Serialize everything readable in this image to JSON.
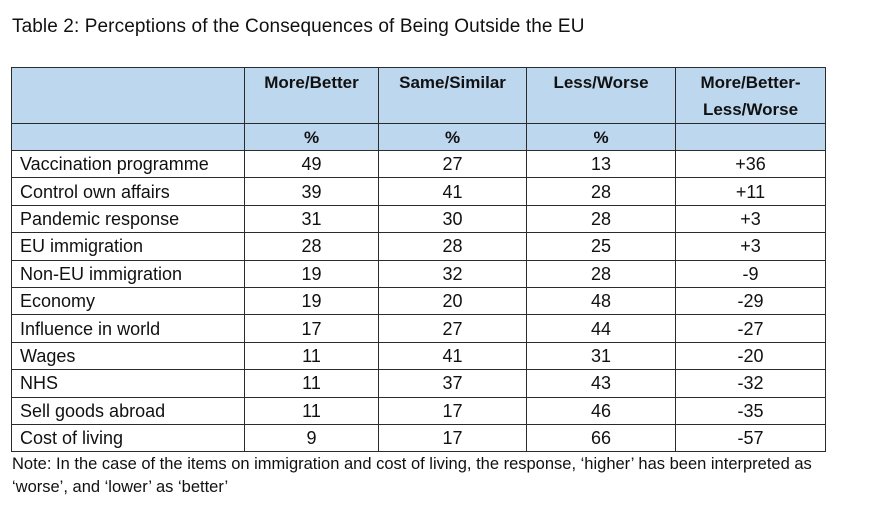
{
  "title": "Table 2: Perceptions of the Consequences of Being Outside the EU",
  "columns": [
    "More/Better",
    "Same/Similar",
    "Less/Worse",
    "More/Better-Less/Worse"
  ],
  "units": [
    "%",
    "%",
    "%",
    ""
  ],
  "rows": [
    {
      "label": "Vaccination programme",
      "values": [
        "49",
        "27",
        "13",
        "+36"
      ]
    },
    {
      "label": "Control own affairs",
      "values": [
        "39",
        "41",
        "28",
        "+11"
      ]
    },
    {
      "label": "Pandemic response",
      "values": [
        "31",
        "30",
        "28",
        "+3"
      ]
    },
    {
      "label": "EU immigration",
      "values": [
        "28",
        "28",
        "25",
        "+3"
      ]
    },
    {
      "label": "Non-EU immigration",
      "values": [
        "19",
        "32",
        "28",
        "-9"
      ]
    },
    {
      "label": "Economy",
      "values": [
        "19",
        "20",
        "48",
        "-29"
      ]
    },
    {
      "label": "Influence in world",
      "values": [
        "17",
        "27",
        "44",
        "-27"
      ]
    },
    {
      "label": "Wages",
      "values": [
        "11",
        "41",
        "31",
        "-20"
      ]
    },
    {
      "label": "NHS",
      "values": [
        "11",
        "37",
        "43",
        "-32"
      ]
    },
    {
      "label": "Sell goods abroad",
      "values": [
        "11",
        "17",
        "46",
        "-35"
      ]
    },
    {
      "label": "Cost of living",
      "values": [
        "9",
        "17",
        "66",
        "-57"
      ]
    }
  ],
  "note": "Note: In the case of the items on immigration and cost of living, the response, ‘higher’ has been interpreted as ‘worse’, and ‘lower’ as ‘better’",
  "colors": {
    "header_fill": "#bdd7ee",
    "border": "#2b2b2b"
  }
}
